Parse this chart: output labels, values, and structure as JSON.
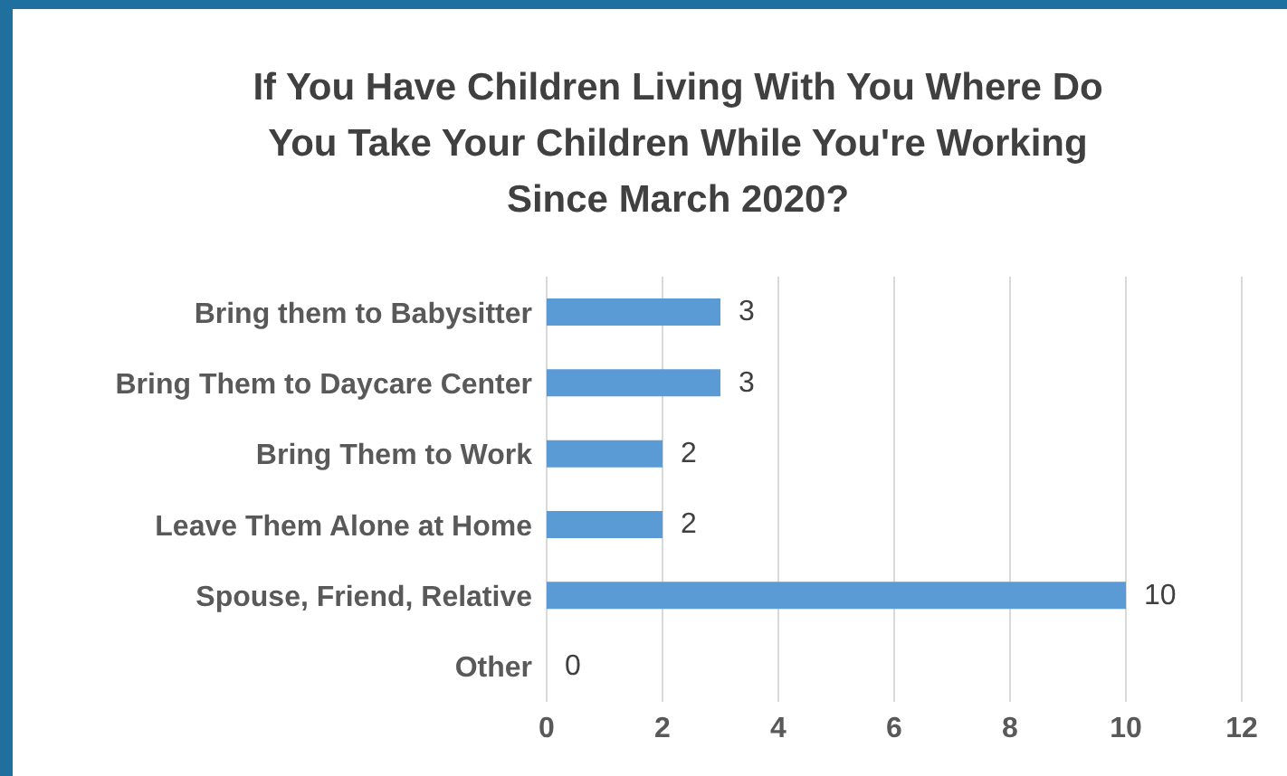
{
  "chart_data": {
    "type": "bar",
    "orientation": "horizontal",
    "title": "If You Have Children Living With You Where Do You Take Your Children While You're Working Since March 2020?",
    "categories": [
      "Bring them to Babysitter",
      "Bring Them to Daycare Center",
      "Bring Them to Work",
      "Leave Them Alone at Home",
      "Spouse, Friend, Relative",
      "Other"
    ],
    "values": [
      3,
      3,
      2,
      2,
      10,
      0
    ],
    "color": "#5b9bd5",
    "xlim": [
      0,
      12
    ],
    "xticks": [
      0,
      2,
      4,
      6,
      8,
      10,
      12
    ],
    "grid": "x",
    "data_labels": true
  }
}
